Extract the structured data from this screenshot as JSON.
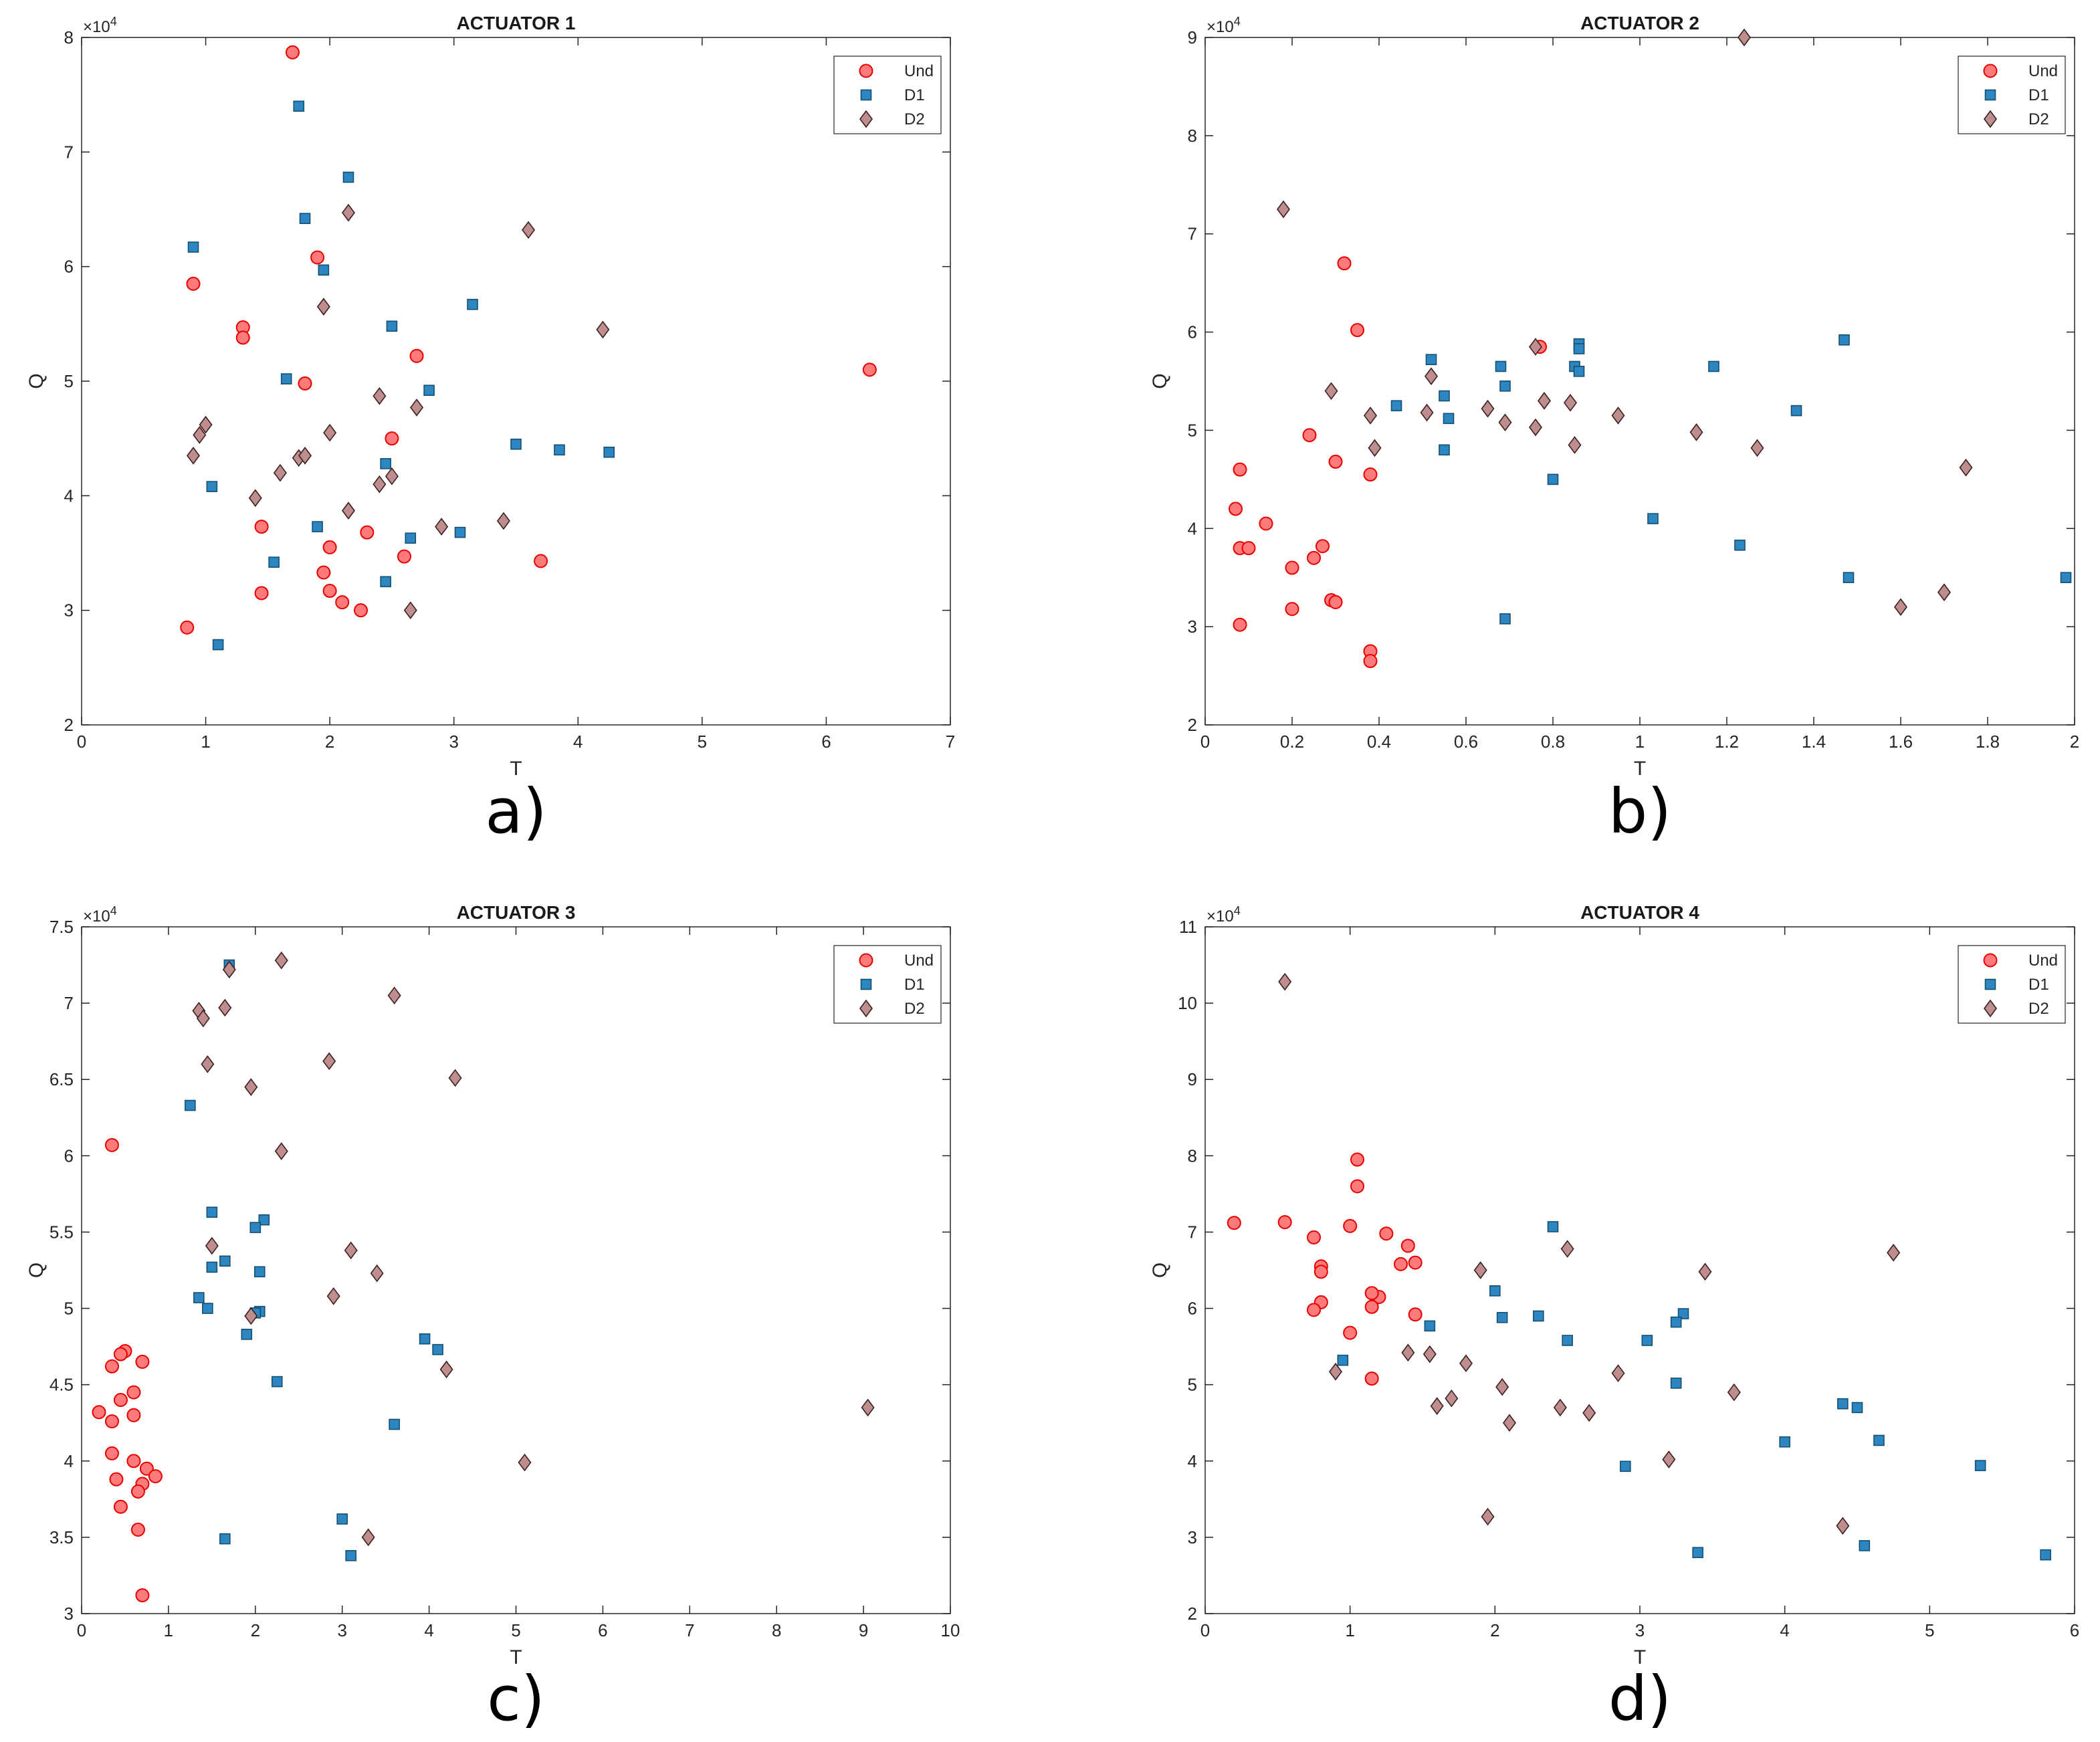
{
  "chart_data": [
    {
      "type": "scatter",
      "panel_label": "a)",
      "title": "ACTUATOR 1",
      "xlabel": "T",
      "ylabel": "Q",
      "y_exponent_base": "×10",
      "y_exponent": "4",
      "xlim": [
        0,
        7
      ],
      "ylim": [
        2,
        8
      ],
      "xticks": [
        "0",
        "1",
        "2",
        "3",
        "4",
        "5",
        "6",
        "7"
      ],
      "yticks": [
        "2",
        "3",
        "4",
        "5",
        "6",
        "7",
        "8"
      ],
      "legend": [
        "Und",
        "D1",
        "D2"
      ],
      "legend_position": "top-right",
      "series": [
        {
          "name": "Und",
          "points": [
            [
              1.7,
              7.87
            ],
            [
              0.9,
              5.85
            ],
            [
              1.9,
              6.08
            ],
            [
              1.3,
              5.47
            ],
            [
              1.3,
              5.38
            ],
            [
              1.8,
              4.98
            ],
            [
              2.7,
              5.22
            ],
            [
              2.5,
              4.5
            ],
            [
              6.35,
              5.1
            ],
            [
              1.45,
              3.73
            ],
            [
              2.0,
              3.55
            ],
            [
              2.3,
              3.68
            ],
            [
              1.95,
              3.33
            ],
            [
              2.6,
              3.47
            ],
            [
              1.45,
              3.15
            ],
            [
              2.0,
              3.17
            ],
            [
              2.1,
              3.07
            ],
            [
              2.25,
              3.0
            ],
            [
              3.7,
              3.43
            ],
            [
              0.85,
              2.85
            ]
          ]
        },
        {
          "name": "D1",
          "points": [
            [
              1.75,
              7.4
            ],
            [
              2.15,
              6.78
            ],
            [
              1.8,
              6.42
            ],
            [
              0.9,
              6.17
            ],
            [
              1.95,
              5.97
            ],
            [
              3.15,
              5.67
            ],
            [
              2.5,
              5.48
            ],
            [
              1.65,
              5.02
            ],
            [
              2.8,
              4.92
            ],
            [
              3.5,
              4.45
            ],
            [
              3.85,
              4.4
            ],
            [
              4.25,
              4.38
            ],
            [
              2.45,
              4.28
            ],
            [
              1.05,
              4.08
            ],
            [
              1.9,
              3.73
            ],
            [
              2.65,
              3.63
            ],
            [
              3.05,
              3.68
            ],
            [
              1.55,
              3.42
            ],
            [
              2.45,
              3.25
            ],
            [
              1.1,
              2.7
            ]
          ]
        },
        {
          "name": "D2",
          "points": [
            [
              2.15,
              6.47
            ],
            [
              3.6,
              6.32
            ],
            [
              1.95,
              5.65
            ],
            [
              4.2,
              5.45
            ],
            [
              2.4,
              4.87
            ],
            [
              2.7,
              4.77
            ],
            [
              2.0,
              4.55
            ],
            [
              1.0,
              4.62
            ],
            [
              0.95,
              4.53
            ],
            [
              0.9,
              4.35
            ],
            [
              1.75,
              4.33
            ],
            [
              1.8,
              4.35
            ],
            [
              1.6,
              4.2
            ],
            [
              2.5,
              4.17
            ],
            [
              2.4,
              4.1
            ],
            [
              1.4,
              3.98
            ],
            [
              2.15,
              3.87
            ],
            [
              3.4,
              3.78
            ],
            [
              2.9,
              3.73
            ],
            [
              2.65,
              3.0
            ]
          ]
        }
      ]
    },
    {
      "type": "scatter",
      "panel_label": "b)",
      "title": "ACTUATOR 2",
      "xlabel": "T",
      "ylabel": "Q",
      "y_exponent_base": "×10",
      "y_exponent": "4",
      "xlim": [
        0,
        2
      ],
      "ylim": [
        2,
        9
      ],
      "xticks": [
        "0",
        "0.2",
        "0.4",
        "0.6",
        "0.8",
        "1",
        "1.2",
        "1.4",
        "1.6",
        "1.8",
        "2"
      ],
      "yticks": [
        "2",
        "3",
        "4",
        "5",
        "6",
        "7",
        "8",
        "9"
      ],
      "legend": [
        "Und",
        "D1",
        "D2"
      ],
      "legend_position": "top-right",
      "series": [
        {
          "name": "Und",
          "points": [
            [
              0.32,
              6.7
            ],
            [
              0.35,
              6.02
            ],
            [
              0.77,
              5.85
            ],
            [
              0.24,
              4.95
            ],
            [
              0.3,
              4.68
            ],
            [
              0.08,
              4.6
            ],
            [
              0.38,
              4.55
            ],
            [
              0.07,
              4.2
            ],
            [
              0.14,
              4.05
            ],
            [
              0.08,
              3.8
            ],
            [
              0.1,
              3.8
            ],
            [
              0.27,
              3.82
            ],
            [
              0.25,
              3.7
            ],
            [
              0.2,
              3.6
            ],
            [
              0.29,
              3.27
            ],
            [
              0.3,
              3.25
            ],
            [
              0.2,
              3.18
            ],
            [
              0.08,
              3.02
            ],
            [
              0.38,
              2.75
            ],
            [
              0.38,
              2.65
            ]
          ]
        },
        {
          "name": "D1",
          "points": [
            [
              0.52,
              5.72
            ],
            [
              0.68,
              5.65
            ],
            [
              0.86,
              5.88
            ],
            [
              0.86,
              5.83
            ],
            [
              0.85,
              5.65
            ],
            [
              1.17,
              5.65
            ],
            [
              1.47,
              5.92
            ],
            [
              0.69,
              5.45
            ],
            [
              0.55,
              5.35
            ],
            [
              0.44,
              5.25
            ],
            [
              0.56,
              5.12
            ],
            [
              1.36,
              5.2
            ],
            [
              0.55,
              4.8
            ],
            [
              0.8,
              4.5
            ],
            [
              1.03,
              4.1
            ],
            [
              1.23,
              3.83
            ],
            [
              1.48,
              3.5
            ],
            [
              1.98,
              3.5
            ],
            [
              0.69,
              3.08
            ],
            [
              0.86,
              5.6
            ]
          ]
        },
        {
          "name": "D2",
          "points": [
            [
              1.24,
              9.0
            ],
            [
              0.18,
              7.25
            ],
            [
              0.76,
              5.85
            ],
            [
              0.52,
              5.55
            ],
            [
              0.29,
              5.4
            ],
            [
              0.78,
              5.3
            ],
            [
              0.84,
              5.28
            ],
            [
              0.65,
              5.22
            ],
            [
              0.51,
              5.18
            ],
            [
              0.38,
              5.15
            ],
            [
              0.95,
              5.15
            ],
            [
              0.69,
              5.08
            ],
            [
              0.76,
              5.03
            ],
            [
              1.13,
              4.98
            ],
            [
              0.39,
              4.82
            ],
            [
              0.85,
              4.85
            ],
            [
              1.27,
              4.82
            ],
            [
              1.75,
              4.62
            ],
            [
              1.7,
              3.35
            ],
            [
              1.6,
              3.2
            ]
          ]
        }
      ]
    },
    {
      "type": "scatter",
      "panel_label": "c)",
      "title": "ACTUATOR 3",
      "xlabel": "T",
      "ylabel": "Q",
      "y_exponent_base": "×10",
      "y_exponent": "4",
      "xlim": [
        0,
        10
      ],
      "ylim": [
        3,
        7.5
      ],
      "xticks": [
        "0",
        "1",
        "2",
        "3",
        "4",
        "5",
        "6",
        "7",
        "8",
        "9",
        "10"
      ],
      "yticks": [
        "3",
        "3.5",
        "4",
        "4.5",
        "5",
        "5.5",
        "6",
        "6.5",
        "7",
        "7.5"
      ],
      "legend": [
        "Und",
        "D1",
        "D2"
      ],
      "legend_position": "top-right",
      "series": [
        {
          "name": "Und",
          "points": [
            [
              0.35,
              6.07
            ],
            [
              0.5,
              4.72
            ],
            [
              0.45,
              4.7
            ],
            [
              0.35,
              4.62
            ],
            [
              0.7,
              4.65
            ],
            [
              0.6,
              4.45
            ],
            [
              0.45,
              4.4
            ],
            [
              0.2,
              4.32
            ],
            [
              0.6,
              4.3
            ],
            [
              0.35,
              4.26
            ],
            [
              0.35,
              4.05
            ],
            [
              0.6,
              4.0
            ],
            [
              0.75,
              3.95
            ],
            [
              0.85,
              3.9
            ],
            [
              0.4,
              3.88
            ],
            [
              0.7,
              3.85
            ],
            [
              0.65,
              3.8
            ],
            [
              0.45,
              3.7
            ],
            [
              0.65,
              3.55
            ],
            [
              0.7,
              3.12
            ]
          ]
        },
        {
          "name": "D1",
          "points": [
            [
              1.7,
              7.25
            ],
            [
              1.25,
              6.33
            ],
            [
              1.5,
              5.63
            ],
            [
              2.1,
              5.58
            ],
            [
              2.0,
              5.53
            ],
            [
              1.65,
              5.31
            ],
            [
              1.5,
              5.27
            ],
            [
              2.05,
              5.24
            ],
            [
              1.35,
              5.07
            ],
            [
              1.45,
              5.0
            ],
            [
              2.05,
              4.98
            ],
            [
              1.9,
              4.83
            ],
            [
              3.95,
              4.8
            ],
            [
              4.1,
              4.73
            ],
            [
              2.25,
              4.52
            ],
            [
              3.6,
              4.24
            ],
            [
              3.0,
              3.62
            ],
            [
              1.65,
              3.49
            ],
            [
              3.1,
              3.38
            ],
            [
              2.0,
              4.97
            ]
          ]
        },
        {
          "name": "D2",
          "points": [
            [
              2.3,
              7.28
            ],
            [
              1.35,
              6.95
            ],
            [
              1.4,
              6.9
            ],
            [
              1.7,
              7.22
            ],
            [
              1.65,
              6.97
            ],
            [
              3.6,
              7.05
            ],
            [
              1.45,
              6.6
            ],
            [
              2.85,
              6.62
            ],
            [
              4.3,
              6.51
            ],
            [
              1.95,
              6.45
            ],
            [
              2.3,
              6.03
            ],
            [
              1.5,
              5.41
            ],
            [
              3.1,
              5.38
            ],
            [
              3.4,
              5.23
            ],
            [
              2.9,
              5.08
            ],
            [
              1.95,
              4.95
            ],
            [
              4.2,
              4.6
            ],
            [
              9.05,
              4.35
            ],
            [
              5.1,
              3.99
            ],
            [
              3.3,
              3.5
            ]
          ]
        }
      ]
    },
    {
      "type": "scatter",
      "panel_label": "d)",
      "title": "ACTUATOR 4",
      "xlabel": "T",
      "ylabel": "Q",
      "y_exponent_base": "×10",
      "y_exponent": "4",
      "xlim": [
        0,
        6
      ],
      "ylim": [
        2,
        11
      ],
      "xticks": [
        "0",
        "1",
        "2",
        "3",
        "4",
        "5",
        "6"
      ],
      "yticks": [
        "2",
        "3",
        "4",
        "5",
        "6",
        "7",
        "8",
        "9",
        "10",
        "11"
      ],
      "legend": [
        "Und",
        "D1",
        "D2"
      ],
      "legend_position": "top-right",
      "series": [
        {
          "name": "Und",
          "points": [
            [
              1.05,
              7.95
            ],
            [
              1.05,
              7.6
            ],
            [
              0.2,
              7.12
            ],
            [
              0.55,
              7.13
            ],
            [
              1.0,
              7.08
            ],
            [
              1.25,
              6.98
            ],
            [
              0.75,
              6.93
            ],
            [
              1.4,
              6.82
            ],
            [
              1.35,
              6.58
            ],
            [
              1.45,
              6.6
            ],
            [
              0.8,
              6.55
            ],
            [
              0.8,
              6.48
            ],
            [
              1.2,
              6.15
            ],
            [
              1.15,
              6.2
            ],
            [
              1.15,
              6.02
            ],
            [
              0.8,
              6.08
            ],
            [
              0.75,
              5.98
            ],
            [
              1.45,
              5.92
            ],
            [
              1.0,
              5.68
            ],
            [
              1.15,
              5.08
            ]
          ]
        },
        {
          "name": "D1",
          "points": [
            [
              2.4,
              7.07
            ],
            [
              2.0,
              6.23
            ],
            [
              2.3,
              5.9
            ],
            [
              2.05,
              5.88
            ],
            [
              1.55,
              5.77
            ],
            [
              3.3,
              5.93
            ],
            [
              3.25,
              5.82
            ],
            [
              3.05,
              5.58
            ],
            [
              2.5,
              5.58
            ],
            [
              3.25,
              5.02
            ],
            [
              0.95,
              5.32
            ],
            [
              4.4,
              4.75
            ],
            [
              4.5,
              4.7
            ],
            [
              4.65,
              4.27
            ],
            [
              4.0,
              4.25
            ],
            [
              2.9,
              3.93
            ],
            [
              5.35,
              3.94
            ],
            [
              3.4,
              2.8
            ],
            [
              4.55,
              2.89
            ],
            [
              5.8,
              2.77
            ]
          ]
        },
        {
          "name": "D2",
          "points": [
            [
              0.55,
              10.28
            ],
            [
              4.75,
              6.73
            ],
            [
              2.5,
              6.78
            ],
            [
              1.9,
              6.5
            ],
            [
              3.45,
              6.48
            ],
            [
              1.8,
              5.28
            ],
            [
              1.4,
              5.42
            ],
            [
              1.55,
              5.4
            ],
            [
              0.9,
              5.17
            ],
            [
              2.85,
              5.15
            ],
            [
              2.05,
              4.97
            ],
            [
              3.65,
              4.9
            ],
            [
              1.7,
              4.82
            ],
            [
              1.6,
              4.72
            ],
            [
              2.45,
              4.7
            ],
            [
              2.65,
              4.63
            ],
            [
              2.1,
              4.5
            ],
            [
              3.2,
              4.02
            ],
            [
              4.4,
              3.15
            ],
            [
              1.95,
              3.27
            ]
          ]
        }
      ]
    }
  ]
}
